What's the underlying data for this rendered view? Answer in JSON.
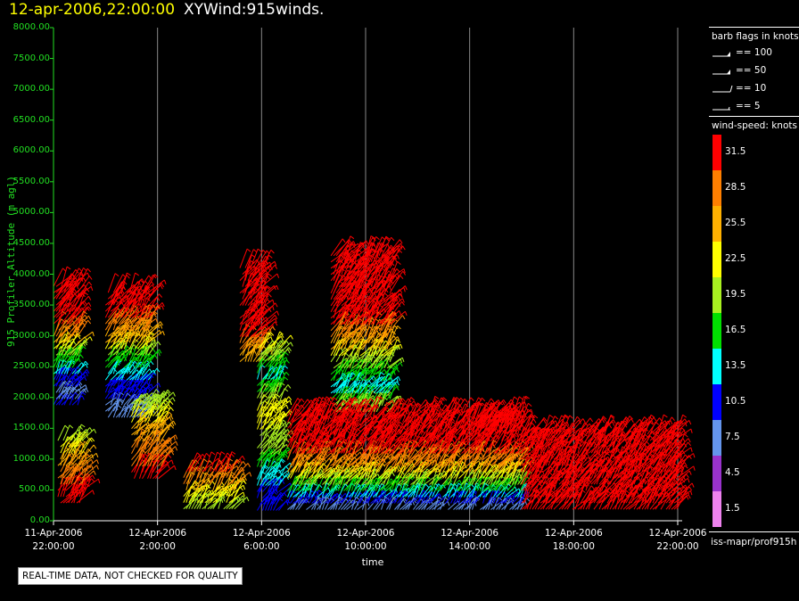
{
  "header": {
    "date": "12-apr-2006,22:00:00",
    "product": "XYWind:915winds."
  },
  "legend": {
    "barb_title": "barb flags in knots",
    "barbs": [
      {
        "label": "== 100",
        "kind": "flag"
      },
      {
        "label": "== 50",
        "kind": "flag"
      },
      {
        "label": "== 10",
        "kind": "full"
      },
      {
        "label": "== 5",
        "kind": "half"
      }
    ],
    "speed_title": "wind-speed: knots",
    "scale": [
      {
        "label": "31.5",
        "color": "#ff0000"
      },
      {
        "label": "28.5",
        "color": "#ff7f00"
      },
      {
        "label": "25.5",
        "color": "#ffb000"
      },
      {
        "label": "22.5",
        "color": "#ffff00"
      },
      {
        "label": "19.5",
        "color": "#a8f020"
      },
      {
        "label": "16.5",
        "color": "#00e000"
      },
      {
        "label": "13.5",
        "color": "#00ffff"
      },
      {
        "label": "10.5",
        "color": "#0000ff"
      },
      {
        "label": "7.5",
        "color": "#6495ed"
      },
      {
        "label": "4.5",
        "color": "#9932cc"
      },
      {
        "label": "1.5",
        "color": "#ee82ee"
      }
    ],
    "source": "iss-mapr/prof915h"
  },
  "notice": "REAL-TIME DATA, NOT CHECKED FOR QUALITY",
  "chart_data": {
    "type": "scatter",
    "title": "12-apr-2006,22:00:00  XYWind:915winds.",
    "xlabel": "time",
    "ylabel": "915 Profiler Altitude (m agl)",
    "xlim": [
      "2006-04-11 22:00",
      "2006-04-12 22:00"
    ],
    "ylim": [
      0,
      8000
    ],
    "grid": "vertical lines at 2-hour ticks",
    "x_ticks": [
      {
        "t": "2006-04-11 22:00",
        "line1": "11-Apr-2006",
        "line2": "22:00:00"
      },
      {
        "t": "2006-04-12 02:00",
        "line1": "12-Apr-2006",
        "line2": "2:00:00"
      },
      {
        "t": "2006-04-12 06:00",
        "line1": "12-Apr-2006",
        "line2": "6:00:00"
      },
      {
        "t": "2006-04-12 10:00",
        "line1": "12-Apr-2006",
        "line2": "10:00:00"
      },
      {
        "t": "2006-04-12 14:00",
        "line1": "12-Apr-2006",
        "line2": "14:00:00"
      },
      {
        "t": "2006-04-12 18:00",
        "line1": "12-Apr-2006",
        "line2": "18:00:00"
      },
      {
        "t": "2006-04-12 22:00",
        "line1": "12-Apr-2006",
        "line2": "22:00:00"
      }
    ],
    "y_ticks": [
      "0.00",
      "500.00",
      "1000.00",
      "1500.00",
      "2000.00",
      "2500.00",
      "3000.00",
      "3500.00",
      "4000.00",
      "4500.00",
      "5000.00",
      "5500.00",
      "6000.00",
      "6500.00",
      "7000.00",
      "7500.00",
      "8000.00"
    ],
    "colorbar": "wind-speed: knots",
    "series": [
      {
        "start": "2006-04-11 22:00",
        "end": "2006-04-11 23:00",
        "alt_low": 1800,
        "alt_high": 3800,
        "speeds": [
          [
            3800,
            31.5
          ],
          [
            3200,
            31.5
          ],
          [
            2900,
            25.5
          ],
          [
            2700,
            19.5
          ],
          [
            2400,
            13.5
          ],
          [
            2100,
            7.5
          ],
          [
            1800,
            10.5
          ]
        ]
      },
      {
        "start": "2006-04-11 22:10",
        "end": "2006-04-11 23:10",
        "alt_low": 200,
        "alt_high": 1300,
        "speeds": [
          [
            1300,
            19.5
          ],
          [
            1000,
            25.5
          ],
          [
            700,
            28.5
          ],
          [
            400,
            31.5
          ],
          [
            200,
            31.5
          ]
        ]
      },
      {
        "start": "2006-04-12 00:00",
        "end": "2006-04-12 01:40",
        "alt_low": 1600,
        "alt_high": 3700,
        "speeds": [
          [
            3700,
            31.5
          ],
          [
            3300,
            31.5
          ],
          [
            2900,
            25.5
          ],
          [
            2700,
            19.5
          ],
          [
            2400,
            13.5
          ],
          [
            2100,
            10.5
          ],
          [
            1800,
            7.5
          ]
        ]
      },
      {
        "start": "2006-04-12 01:00",
        "end": "2006-04-12 02:10",
        "alt_low": 600,
        "alt_high": 1900,
        "speeds": [
          [
            1900,
            19.5
          ],
          [
            1400,
            25.5
          ],
          [
            1000,
            28.5
          ],
          [
            700,
            31.5
          ]
        ]
      },
      {
        "start": "2006-04-12 03:00",
        "end": "2006-04-12 05:00",
        "alt_low": 100,
        "alt_high": 800,
        "speeds": [
          [
            800,
            31.5
          ],
          [
            500,
            25.5
          ],
          [
            300,
            22.5
          ],
          [
            100,
            19.5
          ]
        ]
      },
      {
        "start": "2006-04-12 05:10",
        "end": "2006-04-12 06:00",
        "alt_low": 2500,
        "alt_high": 4100,
        "speeds": [
          [
            4100,
            31.5
          ],
          [
            3600,
            31.5
          ],
          [
            3000,
            31.5
          ],
          [
            2700,
            25.5
          ]
        ]
      },
      {
        "start": "2006-04-12 05:50",
        "end": "2006-04-12 06:40",
        "alt_low": 100,
        "alt_high": 2800,
        "speeds": [
          [
            2800,
            22.5
          ],
          [
            2300,
            13.5
          ],
          [
            1700,
            22.5
          ],
          [
            1100,
            19.5
          ],
          [
            700,
            13.5
          ],
          [
            300,
            10.5
          ]
        ]
      },
      {
        "start": "2006-04-12 08:40",
        "end": "2006-04-12 11:00",
        "alt_low": 1700,
        "alt_high": 4300,
        "speeds": [
          [
            4300,
            31.5
          ],
          [
            3800,
            31.5
          ],
          [
            3300,
            31.5
          ],
          [
            3000,
            28.5
          ],
          [
            2700,
            22.5
          ],
          [
            2400,
            16.5
          ],
          [
            2100,
            13.5
          ],
          [
            1800,
            19.5
          ]
        ]
      },
      {
        "start": "2006-04-12 07:00",
        "end": "2006-04-12 16:00",
        "alt_low": 100,
        "alt_high": 1700,
        "speeds": [
          [
            1700,
            31.5
          ],
          [
            1400,
            31.5
          ],
          [
            1100,
            31.5
          ],
          [
            900,
            28.5
          ],
          [
            700,
            22.5
          ],
          [
            500,
            16.5
          ],
          [
            300,
            10.5
          ],
          [
            150,
            7.5
          ]
        ]
      },
      {
        "start": "2006-04-12 14:00",
        "end": "2006-04-12 15:30",
        "alt_low": 1300,
        "alt_high": 1600,
        "speeds": [
          [
            1600,
            31.5
          ],
          [
            1300,
            31.5
          ]
        ]
      },
      {
        "start": "2006-04-12 16:00",
        "end": "2006-04-12 22:00",
        "alt_low": 100,
        "alt_high": 1400,
        "speeds": [
          [
            1400,
            31.5
          ],
          [
            1100,
            31.5
          ],
          [
            800,
            31.5
          ],
          [
            500,
            31.5
          ],
          [
            200,
            31.5
          ]
        ]
      }
    ]
  }
}
